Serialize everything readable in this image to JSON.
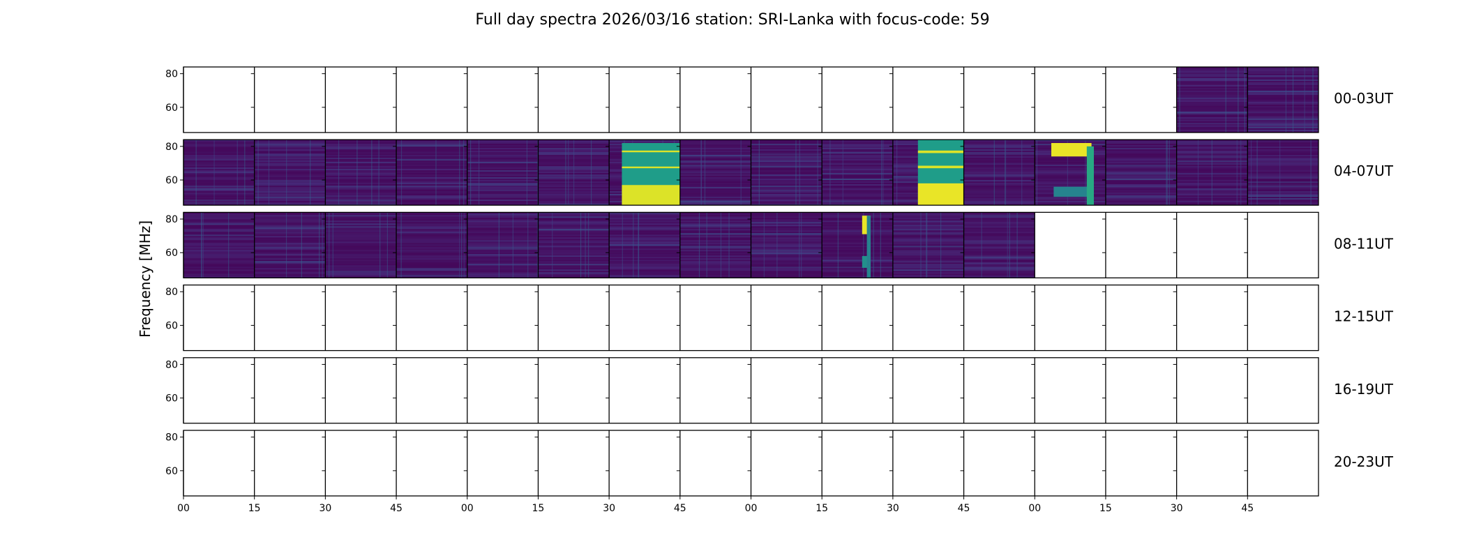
{
  "chart_data": {
    "type": "heatmap",
    "title": "Full day spectra 2026/03/16 station: SRI-Lanka with focus-code: 59",
    "ylabel": "Frequency [MHz]",
    "xlabel": "",
    "ylim": [
      45,
      84
    ],
    "yticks": [
      "80",
      "60"
    ],
    "ytick_values": [
      80,
      60
    ],
    "xticks": [
      "00",
      "15",
      "30",
      "45",
      "00",
      "15",
      "30",
      "45",
      "00",
      "15",
      "30",
      "45",
      "00",
      "15",
      "30",
      "45"
    ],
    "minutes_per_panel": 15,
    "colormap": "viridis",
    "rows": [
      {
        "label": "00-03UT",
        "has_data": [
          0,
          0,
          0,
          0,
          0,
          0,
          0,
          0,
          0,
          0,
          0,
          0,
          0,
          0,
          1,
          1
        ]
      },
      {
        "label": "04-07UT",
        "has_data": [
          1,
          1,
          1,
          1,
          1,
          1,
          1,
          1,
          1,
          1,
          1,
          1,
          1,
          1,
          1,
          1
        ]
      },
      {
        "label": "08-11UT",
        "has_data": [
          1,
          1,
          1,
          1,
          1,
          1,
          1,
          1,
          1,
          1,
          1,
          1,
          0,
          0,
          0,
          0
        ]
      },
      {
        "label": "12-15UT",
        "has_data": [
          0,
          0,
          0,
          0,
          0,
          0,
          0,
          0,
          0,
          0,
          0,
          0,
          0,
          0,
          0,
          0
        ]
      },
      {
        "label": "16-19UT",
        "has_data": [
          0,
          0,
          0,
          0,
          0,
          0,
          0,
          0,
          0,
          0,
          0,
          0,
          0,
          0,
          0,
          0
        ]
      },
      {
        "label": "20-23UT",
        "has_data": [
          0,
          0,
          0,
          0,
          0,
          0,
          0,
          0,
          0,
          0,
          0,
          0,
          0,
          0,
          0,
          0
        ]
      }
    ],
    "bursts": [
      {
        "row": 1,
        "col": 6,
        "t_from": 2.7,
        "t_to": 15,
        "f_from": 45,
        "f_to": 82,
        "level": 0.55
      },
      {
        "row": 1,
        "col": 6,
        "t_from": 2.7,
        "t_to": 15,
        "f_from": 45,
        "f_to": 57,
        "level": 0.95
      },
      {
        "row": 1,
        "col": 6,
        "t_from": 2.7,
        "t_to": 15,
        "f_from": 76.5,
        "f_to": 77.5,
        "level": 0.95
      },
      {
        "row": 1,
        "col": 6,
        "t_from": 2.7,
        "t_to": 15,
        "f_from": 67,
        "f_to": 68,
        "level": 0.95
      },
      {
        "row": 1,
        "col": 10,
        "t_from": 5.3,
        "t_to": 15,
        "f_from": 45,
        "f_to": 84,
        "level": 0.55
      },
      {
        "row": 1,
        "col": 10,
        "t_from": 5.3,
        "t_to": 15,
        "f_from": 45,
        "f_to": 58,
        "level": 0.97
      },
      {
        "row": 1,
        "col": 10,
        "t_from": 5.3,
        "t_to": 15,
        "f_from": 76,
        "f_to": 77.5,
        "level": 0.95
      },
      {
        "row": 1,
        "col": 10,
        "t_from": 5.3,
        "t_to": 15,
        "f_from": 67,
        "f_to": 68.5,
        "level": 0.95
      },
      {
        "row": 1,
        "col": 12,
        "t_from": 3.5,
        "t_to": 12,
        "f_from": 74,
        "f_to": 82,
        "level": 0.97
      },
      {
        "row": 1,
        "col": 12,
        "t_from": 4,
        "t_to": 12,
        "f_from": 50,
        "f_to": 56,
        "level": 0.45
      },
      {
        "row": 1,
        "col": 12,
        "t_from": 11,
        "t_to": 12.5,
        "f_from": 45,
        "f_to": 80,
        "level": 0.6
      },
      {
        "row": 2,
        "col": 9,
        "t_from": 8.5,
        "t_to": 10.3,
        "f_from": 71,
        "f_to": 82,
        "level": 0.97
      },
      {
        "row": 2,
        "col": 9,
        "t_from": 8.5,
        "t_to": 10.3,
        "f_from": 51,
        "f_to": 58,
        "level": 0.5
      },
      {
        "row": 2,
        "col": 9,
        "t_from": 9.5,
        "t_to": 10.3,
        "f_from": 45,
        "f_to": 82,
        "level": 0.45
      }
    ]
  }
}
